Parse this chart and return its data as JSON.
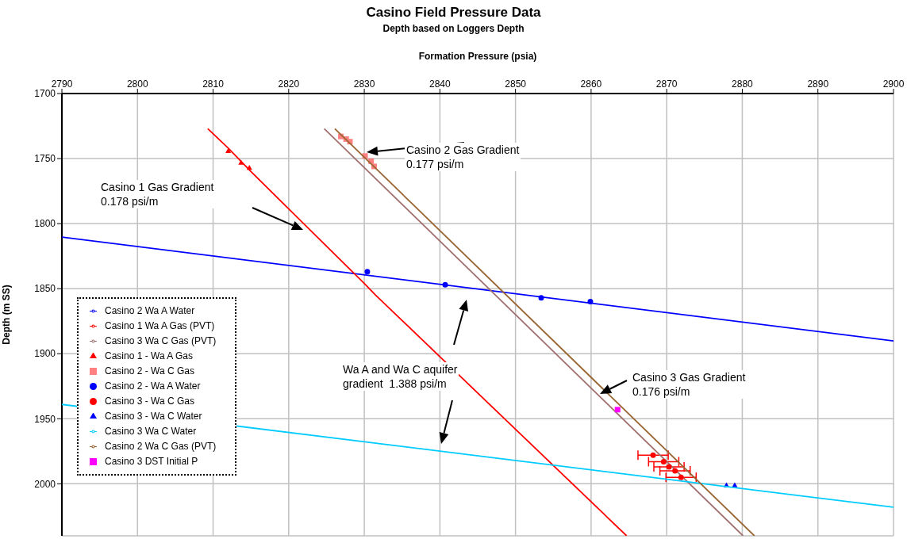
{
  "chart_data": {
    "type": "scatter",
    "title": "Casino Field Pressure Data",
    "subtitle": "Depth based on Loggers Depth",
    "xlabel": "Formation Pressure (psia)",
    "ylabel": "Depth (m SS)",
    "xlim": [
      2790,
      2900
    ],
    "xticks": [
      2790,
      2800,
      2810,
      2820,
      2830,
      2840,
      2850,
      2860,
      2870,
      2880,
      2890,
      2900
    ],
    "ylim": [
      2040,
      1700
    ],
    "yticks": [
      1700,
      1750,
      1800,
      1850,
      1900,
      1950,
      2000
    ],
    "grid": true,
    "legend": "bottom left",
    "annotations": [
      "Casino 2 Gas Gradient\n0.177 psi/m",
      "Casino 1 Gas Gradient\n0.178 psi/m",
      "Wa A and Wa C aquifer\ngradient  1.388 psi/m",
      "Casino 3 Gas Gradient\n0.176 psi/m"
    ],
    "series": [
      {
        "name": "Casino 2 Wa A Water",
        "type": "line",
        "color": "#0000ff",
        "marker": "none",
        "x": [
          2790,
          2900
        ],
        "values": [
          1810.4,
          1890.2
        ]
      },
      {
        "name": "Casino 1 Wa A Gas (PVT)",
        "type": "line",
        "color": "#ff0000",
        "marker": "none",
        "x": [
          2809.3,
          2812,
          2815,
          2830,
          2831.5,
          2864.7
        ],
        "values": [
          1727,
          1742,
          1760,
          1846,
          1855,
          2040
        ]
      },
      {
        "name": "Casino 3 Wa C Gas (PVT)",
        "type": "line",
        "color": "#a0706e",
        "marker": "none",
        "x": [
          2824.7,
          2880.1
        ],
        "values": [
          1727,
          2040
        ]
      },
      {
        "name": "Casino 1 - Wa A Gas",
        "color": "#ff0000",
        "marker": "triangle",
        "x": [
          2812,
          2813.7,
          2814.8
        ],
        "values": [
          1744,
          1753,
          1757
        ]
      },
      {
        "name": "Casino 2 - Wa C Gas",
        "color": "#ff8080",
        "marker": "square",
        "x": [
          2826.9,
          2827.6,
          2828.1,
          2830.1,
          2830.9,
          2831.3
        ],
        "values": [
          1733,
          1735,
          1737,
          1748,
          1752,
          1756
        ]
      },
      {
        "name": "Casino 2 - Wa A Water",
        "color": "#0000ff",
        "marker": "circle",
        "x": [
          2830.4,
          2840.7,
          2853.4,
          2859.9
        ],
        "values": [
          1837,
          1847,
          1857,
          1860
        ]
      },
      {
        "name": "Casino 3 - Wa C Gas",
        "color": "#ff0000",
        "marker": "circle",
        "x": [
          2868.2,
          2869.6,
          2870.3,
          2871.1,
          2871.9
        ],
        "values": [
          1978,
          1983,
          1987,
          1990,
          1995
        ],
        "xerrors": [
          2,
          2,
          2,
          2,
          2
        ]
      },
      {
        "name": "Casino 3 - Wa C Water",
        "color": "#0000ff",
        "marker": "triangle",
        "x": [
          2877.9,
          2879
        ],
        "values": [
          2001,
          2001
        ]
      },
      {
        "name": "Casino 3 Wa C Water",
        "type": "line",
        "color": "#00ccff",
        "marker": "none",
        "x": [
          2790,
          2900
        ],
        "values": [
          1939,
          2018
        ]
      },
      {
        "name": "Casino 2 Wa C Gas (PVT)",
        "type": "line",
        "color": "#996633",
        "marker": "none",
        "x": [
          2826.1,
          2881.6
        ],
        "values": [
          1727,
          2040
        ]
      },
      {
        "name": "Casino 3 DST Initial P",
        "color": "#ff00ff",
        "marker": "square",
        "x": [
          2863.5
        ],
        "values": [
          1943
        ]
      }
    ]
  }
}
